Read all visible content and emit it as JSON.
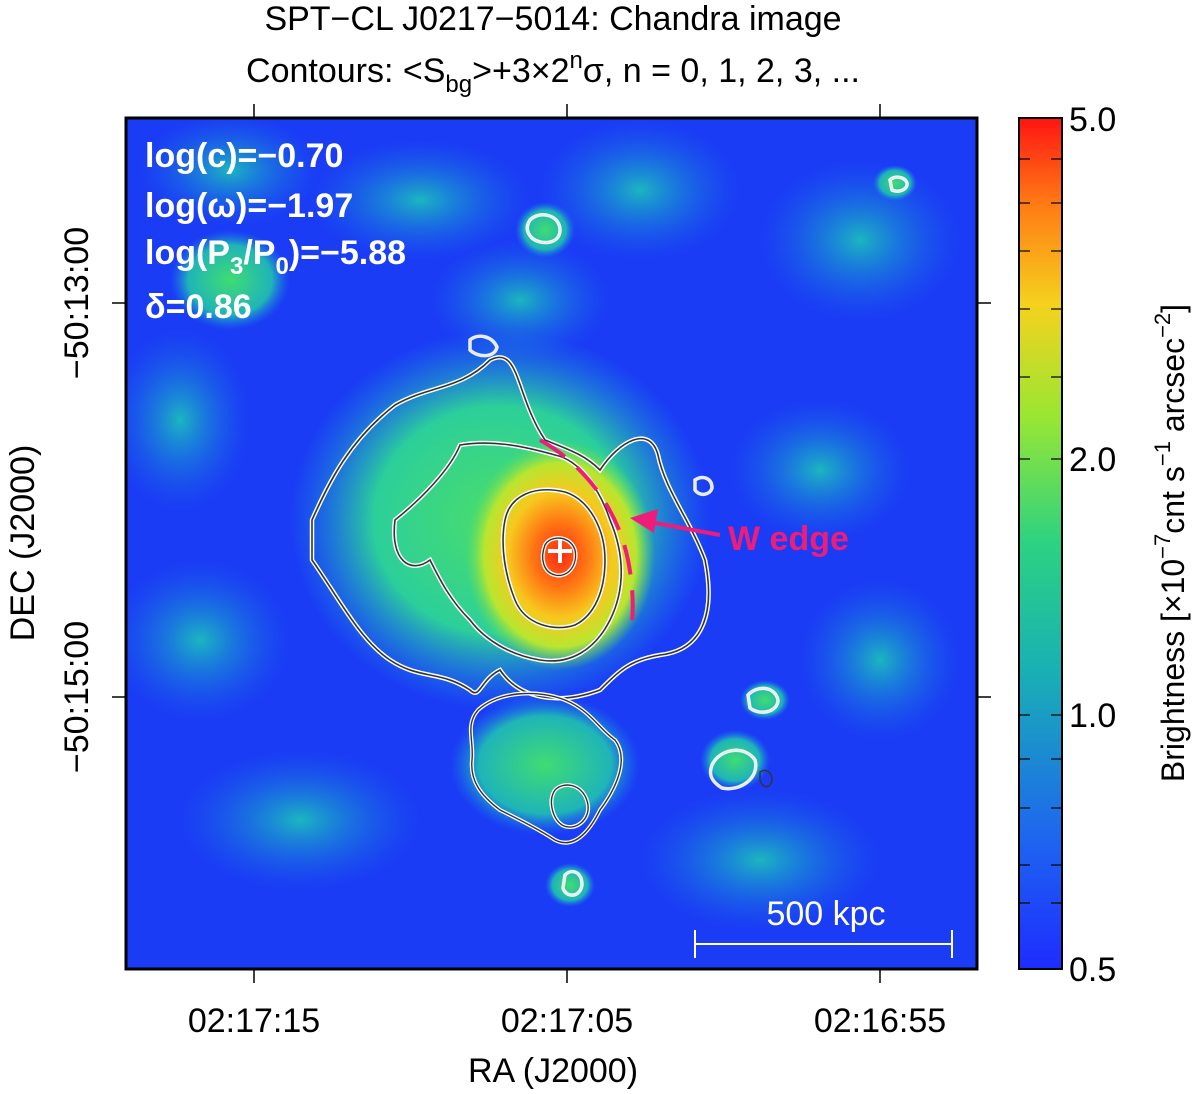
{
  "title": {
    "line1": "SPT−CL J0217−5014: Chandra image",
    "line2_prefix": "Contours: <S",
    "line2_sub": "bg",
    "line2_mid": ">+3×2",
    "line2_sup": "n",
    "line2_suffix": "σ, n = 0, 1, 2, 3, ..."
  },
  "stats": [
    {
      "main": "log(c)=−0.70"
    },
    {
      "main": "log(ω)=−1.97"
    },
    {
      "main_a": "log(P",
      "sub": "3",
      "main_b": "/P",
      "sub2": "0",
      "main_c": ")=−5.88"
    },
    {
      "main": "δ=0.86"
    }
  ],
  "annotation": {
    "label": "W edge",
    "color": "#ee1d7a"
  },
  "scalebar": {
    "label": "500 kpc"
  },
  "x_axis": {
    "label": "RA (J2000)",
    "ticks": [
      "02:17:15",
      "02:17:05",
      "02:16:55"
    ]
  },
  "y_axis": {
    "label": "DEC (J2000)",
    "ticks": [
      "−50:13:00",
      "−50:15:00"
    ]
  },
  "colorbar": {
    "label_prefix": "Brightness [×10",
    "label_sup1": "−7",
    "label_mid": "cnt s",
    "label_sup2": "−1",
    "label_mid2": " arcsec",
    "label_sup3": "−2",
    "label_suffix": "]",
    "ticks": [
      "5.0",
      "2.0",
      "1.0",
      "0.5"
    ],
    "range": [
      0.5,
      5.0
    ],
    "scale": "log"
  },
  "colors": {
    "bg_blue": "#1a3cff",
    "cyan": "#19b6c8",
    "green": "#3ee06a",
    "yellow": "#f0e21a",
    "orange": "#ff8c1a",
    "red": "#ff1a1a"
  }
}
